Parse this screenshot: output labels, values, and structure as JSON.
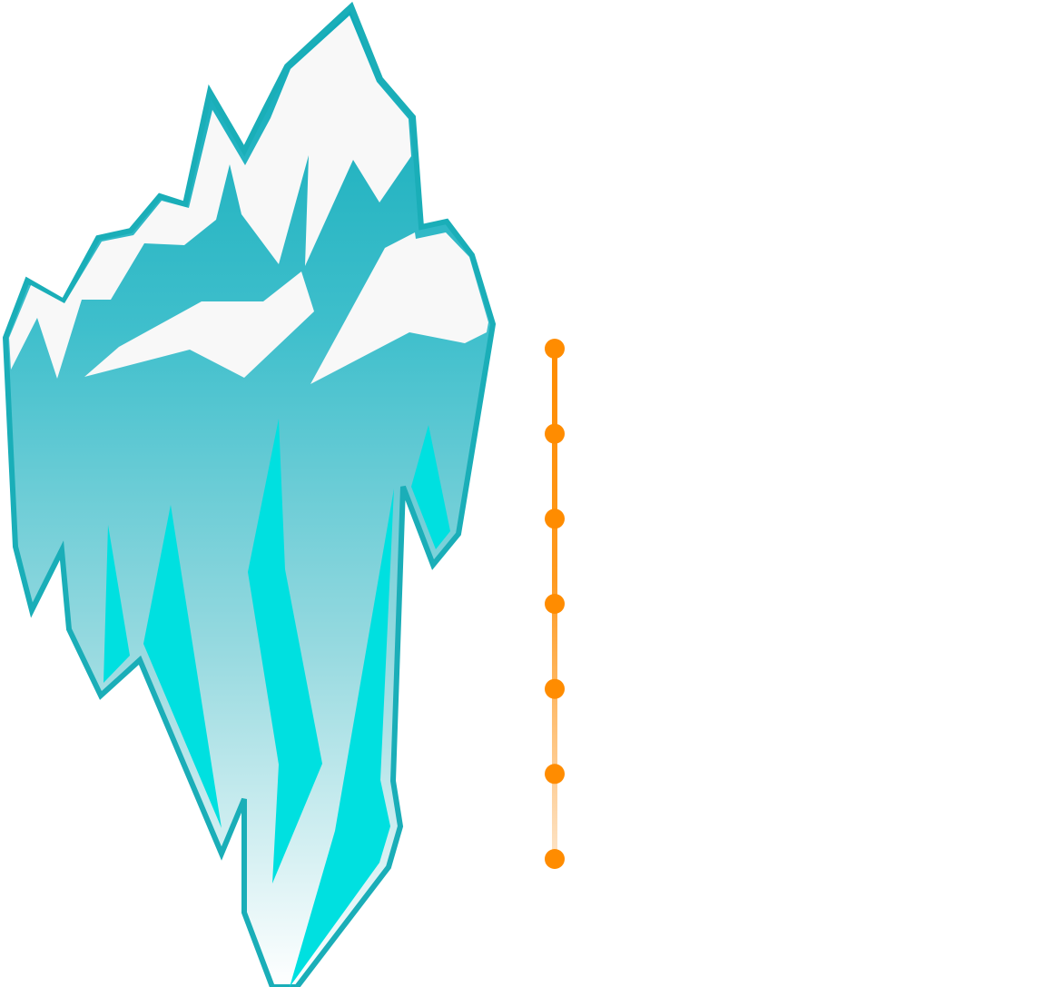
{
  "diagram": {
    "type": "iceberg",
    "colors": {
      "background": "#ffffff",
      "ice_outline": "#1aaeb8",
      "ice_gradient_top": "#1aaeb8",
      "ice_gradient_bottom": "#ffffff",
      "snow": "#f8f8f8",
      "crystal": "#00e0e0",
      "waterline": "#ff8c00",
      "waterline_fade": "#ffe4c4",
      "timeline": "#ff8c00",
      "timeline_fade": "#fde4c8",
      "marker": "#ff8c00"
    },
    "waterline": {
      "style": "gradient-fade-right"
    },
    "timeline": {
      "marker_count": 7,
      "labels": []
    }
  }
}
